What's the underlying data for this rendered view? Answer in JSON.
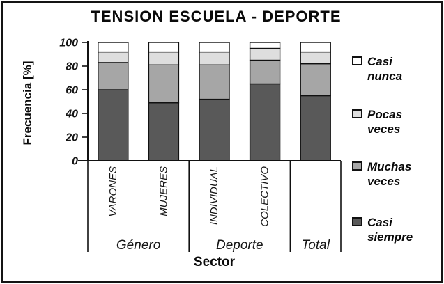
{
  "title": "TENSION ESCUELA - DEPORTE",
  "chart_data": {
    "type": "bar",
    "stacked": true,
    "title": "TENSION ESCUELA - DEPORTE",
    "ylabel": "Frecuencia [%]",
    "xlabel": "Sector",
    "ylim": [
      0,
      100
    ],
    "yticks": [
      0,
      20,
      40,
      60,
      80,
      100
    ],
    "grid": false,
    "categories": [
      "VARONES",
      "MUJERES",
      "INDIVIDUAL",
      "COLECTIVO",
      ""
    ],
    "groups": [
      {
        "label": "Género",
        "count": 2
      },
      {
        "label": "Deporte",
        "count": 2
      },
      {
        "label": "Total",
        "count": 1
      }
    ],
    "series": [
      {
        "name": "Casi siempre",
        "color": "#595959",
        "values": [
          60,
          49,
          52,
          65,
          55
        ]
      },
      {
        "name": "Muchas veces",
        "color": "#a6a6a6",
        "values": [
          23,
          32,
          29,
          20,
          27
        ]
      },
      {
        "name": "Pocas veces",
        "color": "#dedede",
        "values": [
          9,
          11,
          11,
          10,
          10
        ]
      },
      {
        "name": "Casi nunca",
        "color": "#ffffff",
        "values": [
          8,
          8,
          8,
          5,
          8
        ]
      }
    ],
    "legend": {
      "position": "right",
      "items": [
        {
          "label": "Casi nunca",
          "color": "#ffffff"
        },
        {
          "label": "Pocas veces",
          "color": "#dedede"
        },
        {
          "label": "Muchas veces",
          "color": "#a6a6a6"
        },
        {
          "label": "Casi siempre",
          "color": "#595959"
        }
      ]
    }
  }
}
